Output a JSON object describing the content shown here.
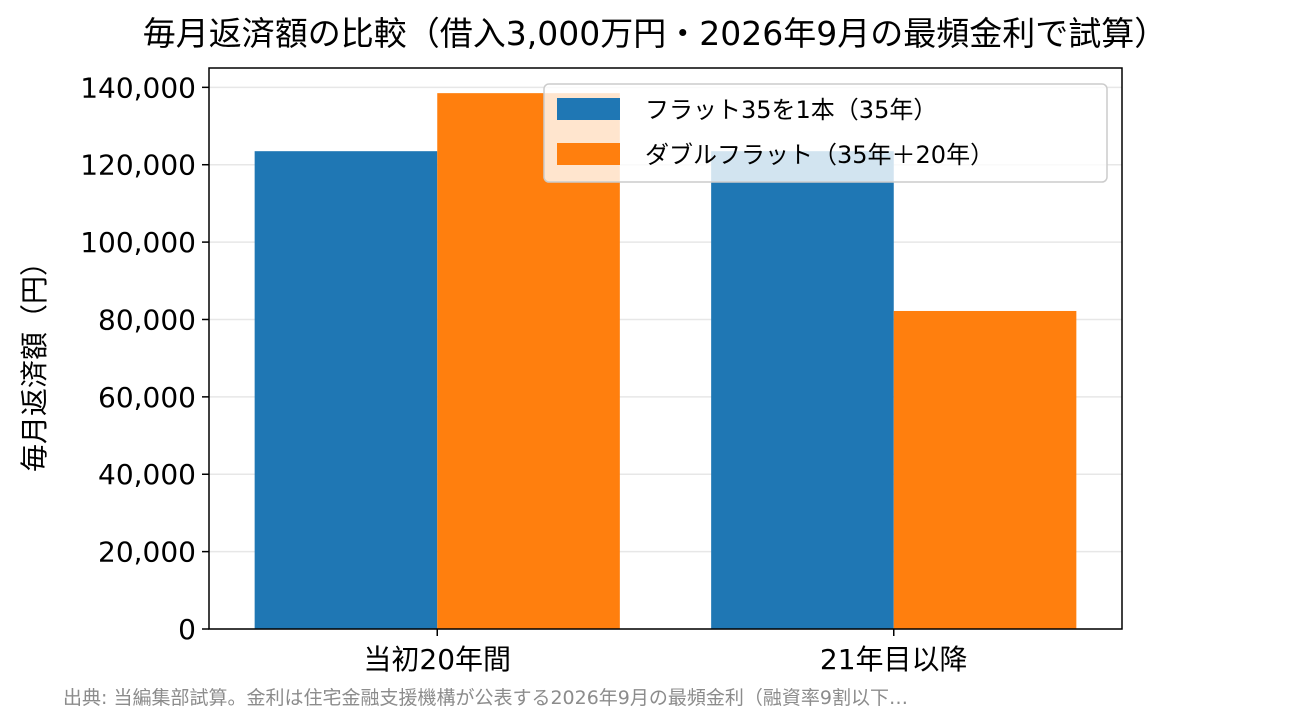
{
  "chart_data": {
    "type": "bar",
    "title": "毎月返済額の比較（借入3,000万円・2026年9月の最頻金利で試算）",
    "xlabel": "",
    "ylabel": "毎月返済額（円）",
    "categories": [
      "当初20年間",
      "21年目以降"
    ],
    "series": [
      {
        "name": "フラット35を1本（35年）",
        "color": "#1f77b4",
        "values": [
          123500,
          123500
        ]
      },
      {
        "name": "ダブルフラット（35年＋20年）",
        "color": "#ff7f0e",
        "values": [
          138500,
          82200
        ]
      }
    ],
    "ylim": [
      0,
      145000
    ],
    "yticks": [
      0,
      20000,
      40000,
      60000,
      80000,
      100000,
      120000,
      140000
    ],
    "ytick_labels": [
      "0",
      "20,000",
      "40,000",
      "60,000",
      "80,000",
      "100,000",
      "120,000",
      "140,000"
    ],
    "grid": "horizontal",
    "legend_position": "upper-right"
  },
  "source_note": "出典: 当編集部試算。金利は住宅金融支援機構が公表する2026年9月の最頻金利（融資率9割以下…"
}
